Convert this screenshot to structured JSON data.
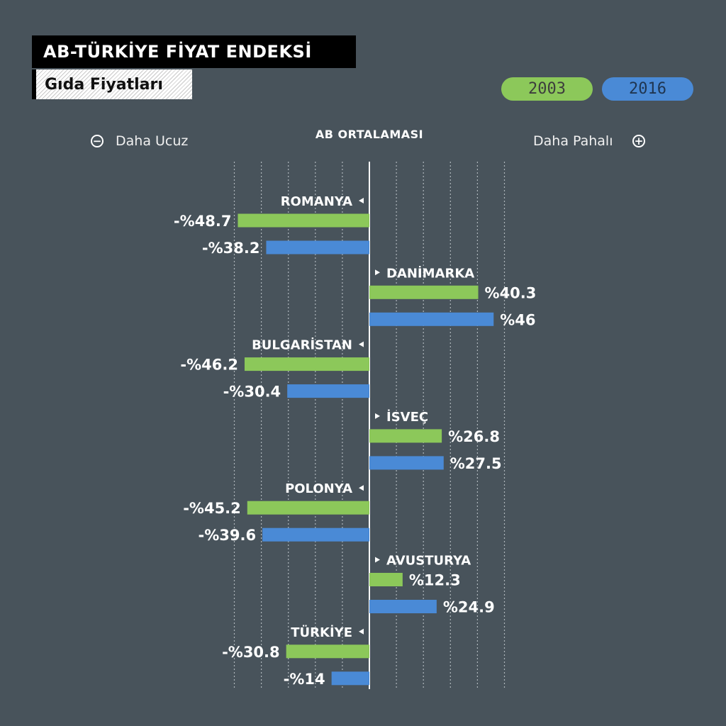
{
  "header": {
    "title": "AB-TÜRKİYE FİYAT ENDEKSİ",
    "subtitle": "Gıda Fiyatları"
  },
  "legend": [
    {
      "label": "2003",
      "color": "#8cc85a"
    },
    {
      "label": "2016",
      "color": "#4a8ad6"
    }
  ],
  "axis": {
    "left_label": "Daha Ucuz",
    "left_icon": "minus-circle-icon",
    "right_label": "Daha Pahalı",
    "right_icon": "plus-circle-icon",
    "center_label": "AB ORTALAMASI"
  },
  "chart_data": {
    "type": "bar",
    "orientation": "horizontal-diverging",
    "title": "AB-TÜRKİYE FİYAT ENDEKSİ",
    "subtitle": "Gıda Fiyatları",
    "xlim": [
      -50,
      50
    ],
    "grid": true,
    "legend_position": "top-right",
    "categories": [
      "ROMANYA",
      "DANİMARKA",
      "BULGARİSTAN",
      "İSVEÇ",
      "POLONYA",
      "AVUSTURYA",
      "TÜRKİYE"
    ],
    "series": [
      {
        "name": "2003",
        "color": "#8cc85a",
        "values": [
          -48.7,
          40.3,
          -46.2,
          26.8,
          -45.2,
          12.3,
          -30.8
        ],
        "labels": [
          "-%48.7",
          "%40.3",
          "-%46.2",
          "%26.8",
          "-%45.2",
          "%12.3",
          "-%30.8"
        ]
      },
      {
        "name": "2016",
        "color": "#4a8ad6",
        "values": [
          -38.2,
          46,
          -30.4,
          27.5,
          -39.6,
          24.9,
          -14
        ],
        "labels": [
          "-%38.2",
          "%46",
          "-%30.4",
          "%27.5",
          "-%39.6",
          "%24.9",
          "-%14"
        ]
      }
    ]
  }
}
